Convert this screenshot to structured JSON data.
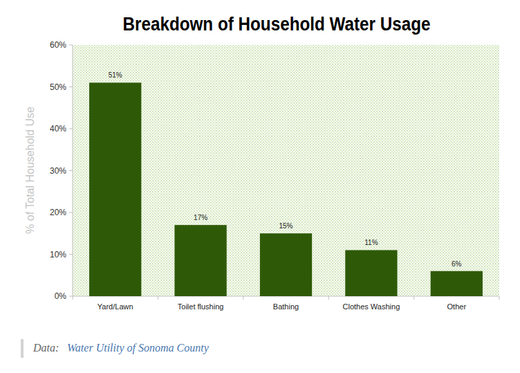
{
  "chart_data": {
    "type": "bar",
    "title": "Breakdown of Household Water Usage",
    "y_label": "% of Total Household Use",
    "categories": [
      "Yard/Lawn",
      "Toilet flushing",
      "Bathing",
      "Clothes Washing",
      "Other"
    ],
    "values": [
      51,
      17,
      15,
      11,
      6
    ],
    "value_labels": [
      "51%",
      "17%",
      "15%",
      "11%",
      "6%"
    ],
    "data_labels": true,
    "color": "#2e5a07",
    "ylim": [
      0,
      60
    ],
    "yticks": [
      {
        "value": 0,
        "label": "0%"
      },
      {
        "value": 10,
        "label": "10%"
      },
      {
        "value": 20,
        "label": "20%"
      },
      {
        "value": 30,
        "label": "30%"
      },
      {
        "value": 40,
        "label": "40%"
      },
      {
        "value": 50,
        "label": "50%"
      },
      {
        "value": 60,
        "label": "60%"
      }
    ],
    "grid": false,
    "source": {
      "label": "Data:",
      "text": "Water Utility of Sonoma County"
    }
  }
}
